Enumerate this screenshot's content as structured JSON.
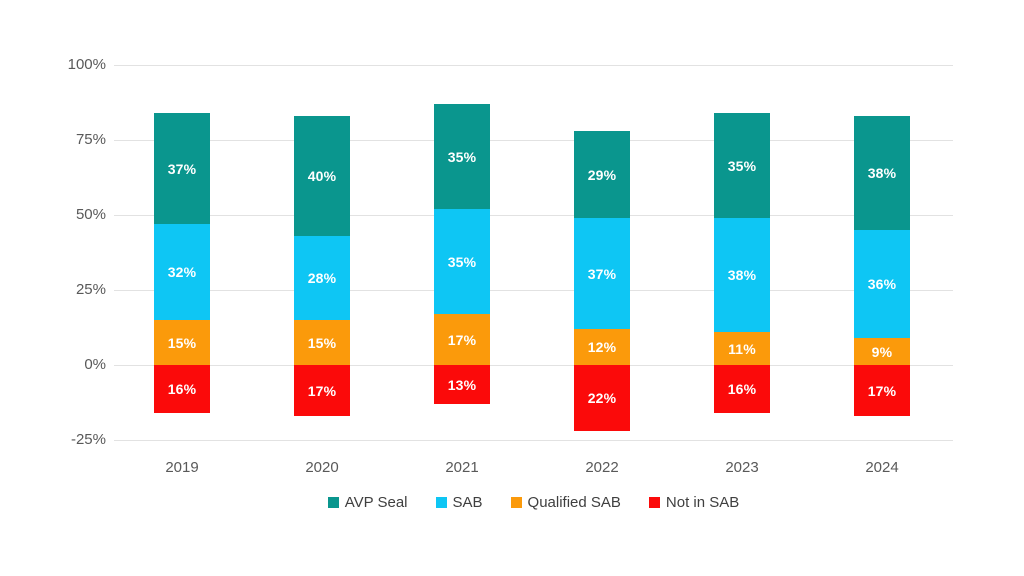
{
  "chart_data": {
    "type": "bar",
    "stacked": true,
    "title": "",
    "categories": [
      "2019",
      "2020",
      "2021",
      "2022",
      "2023",
      "2024"
    ],
    "series": [
      {
        "name": "AVP Seal",
        "color": "#0A968E",
        "values": [
          37,
          40,
          35,
          29,
          35,
          38
        ],
        "direction": "positive"
      },
      {
        "name": "SAB",
        "color": "#0EC6F4",
        "values": [
          32,
          28,
          35,
          37,
          38,
          36
        ],
        "direction": "positive"
      },
      {
        "name": "Qualified SAB",
        "color": "#FB9A0B",
        "values": [
          15,
          15,
          17,
          12,
          11,
          9
        ],
        "direction": "positive"
      },
      {
        "name": "Not in SAB",
        "color": "#FB0A0A",
        "values": [
          16,
          17,
          13,
          22,
          16,
          17
        ],
        "direction": "negative"
      }
    ],
    "positive_stack_order_bottom_to_top": [
      "Qualified SAB",
      "SAB",
      "AVP Seal"
    ],
    "data_label_format": "{value}%",
    "xlabel": "",
    "ylabel": "",
    "y_axis": {
      "min": -25,
      "max": 100,
      "tick_step": 25,
      "ticks": [
        {
          "label": "100%",
          "value": 100
        },
        {
          "label": "75%",
          "value": 75
        },
        {
          "label": "50%",
          "value": 50
        },
        {
          "label": "25%",
          "value": 25
        },
        {
          "label": "0%",
          "value": 0
        },
        {
          "label": "-25%",
          "value": -25
        }
      ],
      "grid": true
    },
    "legend": {
      "position": "bottom",
      "items": [
        "AVP Seal",
        "SAB",
        "Qualified SAB",
        "Not in SAB"
      ]
    }
  },
  "style": {
    "background": "#FFFFFF",
    "grid_color": "#E2E2E2",
    "axis_label_color": "#595959",
    "legend_text_color": "#3F3F3F",
    "data_label_color": "#FFFFFF"
  }
}
